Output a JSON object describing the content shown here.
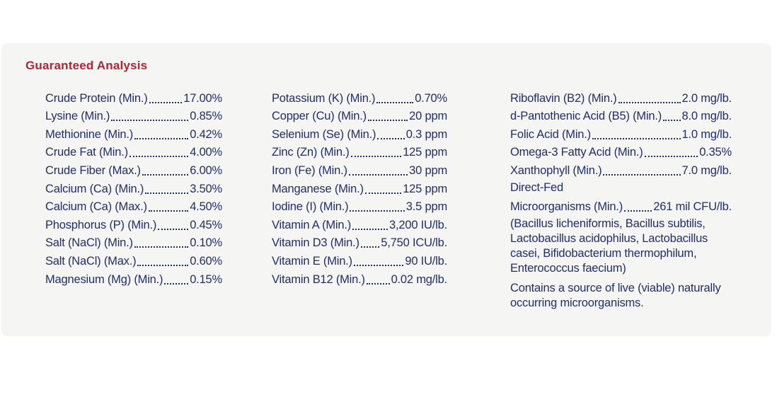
{
  "colors": {
    "page": "#ffffff",
    "panel": "#f5f5f4",
    "heading": "#b22533",
    "text": "#202e6a"
  },
  "section": {
    "title": "Guaranteed Analysis"
  },
  "columns": [
    {
      "rows": [
        {
          "label": "Crude Protein (Min.)",
          "value": "17.00%"
        },
        {
          "label": "Lysine (Min.)",
          "value": "0.85%"
        },
        {
          "label": "Methionine (Min.)",
          "value": "0.42%"
        },
        {
          "label": "Crude Fat (Min.)",
          "value": "4.00%"
        },
        {
          "label": "Crude Fiber (Max.)",
          "value": "6.00%"
        },
        {
          "label": "Calcium (Ca) (Min.)",
          "value": "3.50%"
        },
        {
          "label": "Calcium (Ca) (Max.)",
          "value": "4.50%"
        },
        {
          "label": "Phosphorus (P) (Min.)",
          "value": "0.45%"
        },
        {
          "label": "Salt (NaCl) (Min.)",
          "value": "0.10%"
        },
        {
          "label": "Salt (NaCl) (Max.)",
          "value": "0.60%"
        },
        {
          "label": "Magnesium (Mg) (Min.)",
          "value": "0.15%"
        }
      ]
    },
    {
      "rows": [
        {
          "label": "Potassium (K) (Min.)",
          "value": "0.70%"
        },
        {
          "label": "Copper (Cu) (Min.)",
          "value": "20 ppm"
        },
        {
          "label": "Selenium (Se) (Min.)",
          "value": "0.3 ppm"
        },
        {
          "label": "Zinc (Zn) (Min.)",
          "value": "125 ppm"
        },
        {
          "label": "Iron (Fe) (Min.)",
          "value": "30 ppm"
        },
        {
          "label": "Manganese (Min.)",
          "value": "125 ppm"
        },
        {
          "label": "Iodine (I) (Min.)",
          "value": "3.5 ppm"
        },
        {
          "label": "Vitamin A (Min.)",
          "value": "3,200 IU/lb."
        },
        {
          "label": "Vitamin D3 (Min.)",
          "value": "5,750 ICU/lb."
        },
        {
          "label": "Vitamin E (Min.)",
          "value": "90 IU/lb."
        },
        {
          "label": "Vitamin B12 (Min.)",
          "value": "0.02 mg/lb."
        }
      ]
    },
    {
      "rows": [
        {
          "label": "Riboflavin (B2) (Min.)",
          "value": "2.0 mg/lb."
        },
        {
          "label": "d-Pantothenic Acid (B5) (Min.)",
          "value": "8.0 mg/lb."
        },
        {
          "label": "Folic Acid (Min.)",
          "value": "1.0 mg/lb."
        },
        {
          "label": "Omega-3 Fatty Acid (Min.)",
          "value": "0.35%"
        },
        {
          "label": "Xanthophyll (Min.)",
          "value": "7.0 mg/lb."
        }
      ],
      "direct_fed": {
        "line1": "Direct-Fed",
        "label": "Microorganisms (Min.)",
        "value": "261 mil CFU/lb."
      },
      "organisms": "(Bacillus licheniformis, Bacillus subtilis, Lactobacillus acidophilus, Lactobacillus casei, Bifidobacterium thermophilum, Enterococcus faecium)",
      "note": "Contains a source of live (viable) naturally occurring microorganisms."
    }
  ]
}
